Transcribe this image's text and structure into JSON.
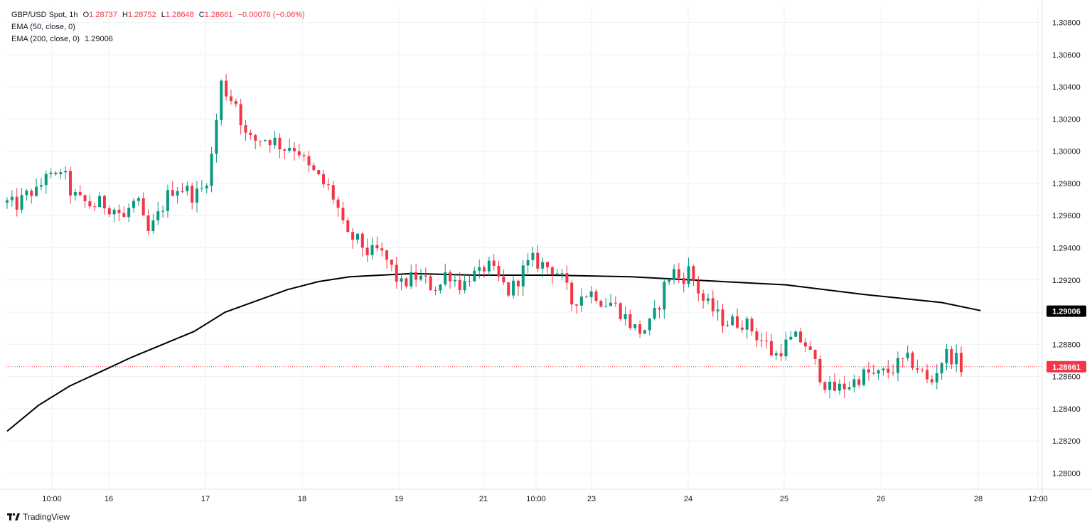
{
  "legend": {
    "symbol": "GBP/USD Spot, 1h",
    "o_label": "O",
    "o_value": "1.28737",
    "h_label": "H",
    "h_value": "1.28752",
    "l_label": "L",
    "l_value": "1.28648",
    "c_label": "C",
    "c_value": "1.28661",
    "change": "−0.00076 (−0.06%)",
    "ema50": "EMA (50, close, 0)",
    "ema200": "EMA (200, close, 0)",
    "ema200_value": "1.29006"
  },
  "branding": {
    "text": "TradingView",
    "icon": "tradingview-logo-icon"
  },
  "colors": {
    "up": "#089981",
    "down": "#f23645",
    "ema": "#000000",
    "last_price": "#f23645",
    "ema_label_bg": "#000000"
  },
  "chart_data": {
    "type": "candlestick",
    "title": "GBP/USD Spot, 1h",
    "ylim": [
      1.279,
      1.309
    ],
    "y_ticks": [
      "1.30800",
      "1.30600",
      "1.30400",
      "1.30200",
      "1.30000",
      "1.29800",
      "1.29600",
      "1.29400",
      "1.29200",
      "1.29000",
      "1.28800",
      "1.28600",
      "1.28400",
      "1.28200",
      "1.28000"
    ],
    "x_ticks": [
      "10:00",
      "16",
      "17",
      "18",
      "19",
      "21",
      "10:00",
      "23",
      "24",
      "25",
      "26",
      "28",
      "12:00"
    ],
    "grid": true,
    "last_price": {
      "value": 1.28661,
      "label": "1.28661"
    },
    "ema200_label": {
      "value": 1.29006,
      "label": "1.29006"
    },
    "ema200_path": [
      [
        0,
        1.2826
      ],
      [
        16,
        1.2842
      ],
      [
        32,
        1.2854
      ],
      [
        48,
        1.2863
      ],
      [
        64,
        1.2872
      ],
      [
        80,
        1.288
      ],
      [
        96,
        1.2888
      ],
      [
        112,
        1.29
      ],
      [
        128,
        1.2907
      ],
      [
        144,
        1.2914
      ],
      [
        160,
        1.2919
      ],
      [
        176,
        1.2922
      ],
      [
        192,
        1.2923
      ],
      [
        208,
        1.2924
      ],
      [
        240,
        1.2923
      ],
      [
        280,
        1.2923
      ],
      [
        320,
        1.2922
      ],
      [
        352,
        1.292
      ],
      [
        400,
        1.2917
      ],
      [
        440,
        1.2911
      ],
      [
        480,
        1.2906
      ],
      [
        500,
        1.2901
      ]
    ],
    "candle_points": [
      [
        0,
        1.2968
      ],
      [
        4,
        1.2966
      ],
      [
        8,
        1.297
      ],
      [
        12,
        1.2975
      ],
      [
        16,
        1.2974
      ],
      [
        20,
        1.2988
      ],
      [
        24,
        1.298
      ],
      [
        28,
        1.299
      ],
      [
        32,
        1.2976
      ],
      [
        36,
        1.297
      ],
      [
        40,
        1.2968
      ],
      [
        44,
        1.2966
      ],
      [
        48,
        1.2968
      ],
      [
        52,
        1.2966
      ],
      [
        56,
        1.2964
      ],
      [
        60,
        1.2958
      ],
      [
        64,
        1.2968
      ],
      [
        68,
        1.2966
      ],
      [
        70,
        1.2956
      ],
      [
        72,
        1.2948
      ],
      [
        76,
        1.2956
      ],
      [
        80,
        1.2966
      ],
      [
        84,
        1.2976
      ],
      [
        88,
        1.2978
      ],
      [
        92,
        1.2976
      ],
      [
        96,
        1.2972
      ],
      [
        100,
        1.2976
      ],
      [
        104,
        1.2988
      ],
      [
        108,
        1.3024
      ],
      [
        110,
        1.3042
      ],
      [
        114,
        1.3034
      ],
      [
        118,
        1.303
      ],
      [
        122,
        1.301
      ],
      [
        126,
        1.3006
      ],
      [
        130,
        1.3008
      ],
      [
        134,
        1.3008
      ],
      [
        138,
        1.3006
      ],
      [
        142,
        1.3002
      ],
      [
        146,
        1.3004
      ],
      [
        150,
        1.3
      ],
      [
        154,
        1.299
      ],
      [
        158,
        1.2986
      ],
      [
        162,
        1.298
      ],
      [
        166,
        1.2976
      ],
      [
        170,
        1.2964
      ],
      [
        174,
        1.2946
      ],
      [
        178,
        1.2946
      ],
      [
        182,
        1.2942
      ],
      [
        186,
        1.2936
      ],
      [
        190,
        1.2938
      ],
      [
        194,
        1.2934
      ],
      [
        198,
        1.2926
      ],
      [
        202,
        1.2916
      ],
      [
        206,
        1.292
      ],
      [
        210,
        1.2922
      ],
      [
        214,
        1.292
      ],
      [
        218,
        1.2916
      ],
      [
        222,
        1.2916
      ],
      [
        226,
        1.2926
      ],
      [
        230,
        1.292
      ],
      [
        234,
        1.2916
      ],
      [
        238,
        1.2924
      ],
      [
        242,
        1.2922
      ],
      [
        246,
        1.293
      ],
      [
        250,
        1.2924
      ],
      [
        254,
        1.2918
      ],
      [
        258,
        1.2912
      ],
      [
        262,
        1.292
      ],
      [
        266,
        1.2928
      ],
      [
        270,
        1.2932
      ],
      [
        274,
        1.293
      ],
      [
        278,
        1.2928
      ],
      [
        282,
        1.2926
      ],
      [
        286,
        1.2918
      ],
      [
        290,
        1.2906
      ],
      [
        294,
        1.291
      ],
      [
        298,
        1.2912
      ],
      [
        302,
        1.2912
      ],
      [
        306,
        1.2906
      ],
      [
        310,
        1.2906
      ],
      [
        314,
        1.2902
      ],
      [
        318,
        1.2896
      ],
      [
        322,
        1.289
      ],
      [
        326,
        1.2888
      ],
      [
        330,
        1.2892
      ],
      [
        334,
        1.2902
      ],
      [
        338,
        1.2918
      ],
      [
        342,
        1.2926
      ],
      [
        346,
        1.292
      ],
      [
        350,
        1.2926
      ],
      [
        354,
        1.2916
      ],
      [
        358,
        1.2906
      ],
      [
        362,
        1.2902
      ],
      [
        366,
        1.2896
      ],
      [
        370,
        1.2894
      ],
      [
        374,
        1.2894
      ],
      [
        378,
        1.2894
      ],
      [
        382,
        1.289
      ],
      [
        386,
        1.2884
      ],
      [
        390,
        1.288
      ],
      [
        394,
        1.2872
      ],
      [
        398,
        1.2878
      ],
      [
        402,
        1.2882
      ],
      [
        406,
        1.2884
      ],
      [
        410,
        1.288
      ],
      [
        414,
        1.287
      ],
      [
        418,
        1.286
      ],
      [
        422,
        1.2852
      ],
      [
        426,
        1.2852
      ],
      [
        430,
        1.2854
      ],
      [
        434,
        1.2856
      ],
      [
        438,
        1.286
      ],
      [
        442,
        1.2862
      ],
      [
        446,
        1.286
      ],
      [
        450,
        1.2862
      ],
      [
        454,
        1.2864
      ],
      [
        458,
        1.2868
      ],
      [
        462,
        1.287
      ],
      [
        466,
        1.2868
      ],
      [
        470,
        1.2862
      ],
      [
        474,
        1.2854
      ],
      [
        478,
        1.2866
      ],
      [
        482,
        1.2874
      ],
      [
        486,
        1.2872
      ],
      [
        490,
        1.2866
      ]
    ]
  }
}
